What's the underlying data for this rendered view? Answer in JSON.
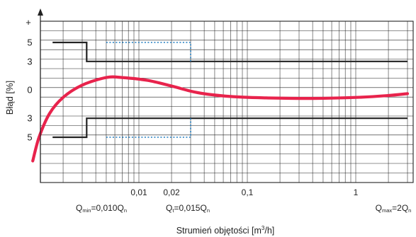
{
  "chart_data": {
    "type": "line",
    "x_scale": "log",
    "ylabel": "Błąd [%]",
    "xlabel_main": "Strumień objętości [m",
    "xlabel_sup": "3",
    "xlabel_end": "/h]",
    "y_plus_marker": "+",
    "y_tick_labels": [
      {
        "value": 5,
        "label": "5"
      },
      {
        "value": 3,
        "label": "3"
      },
      {
        "value": 0,
        "label": "0"
      },
      {
        "value": -3,
        "label": "3"
      },
      {
        "value": -5,
        "label": "5"
      }
    ],
    "x_tick_labels": [
      {
        "value": 0.01,
        "label": "0,01"
      },
      {
        "value": 0.02,
        "label": "0,02"
      },
      {
        "value": 0.1,
        "label": "0,1"
      },
      {
        "value": 1,
        "label": "1"
      }
    ],
    "flow_points": [
      {
        "name": "qmin",
        "q": "Q",
        "sub": "min",
        "rest": "=0,010Q",
        "rest_sub": "n"
      },
      {
        "name": "qt",
        "q": "Q",
        "sub": "t",
        "rest": "=0,015Q",
        "rest_sub": "n"
      },
      {
        "name": "qmax",
        "q": "Q",
        "sub": "max",
        "rest": "=2Q",
        "rest_sub": "n"
      }
    ],
    "error_limits": {
      "color": "#222222",
      "upper": [
        [
          0.0016,
          5
        ],
        [
          0.0033,
          5
        ],
        [
          0.0033,
          3
        ],
        [
          3.0,
          3
        ]
      ],
      "lower": [
        [
          0.0016,
          -5
        ],
        [
          0.0033,
          -5
        ],
        [
          0.0033,
          -3
        ],
        [
          3.0,
          -3
        ]
      ]
    },
    "dotted_limits": {
      "color": "#1e7bc0",
      "upper": [
        [
          0.005,
          5
        ],
        [
          0.03,
          5
        ],
        [
          0.03,
          3
        ]
      ],
      "lower": [
        [
          0.005,
          -5
        ],
        [
          0.03,
          -5
        ],
        [
          0.03,
          -3
        ]
      ]
    },
    "series": [
      {
        "color": "#e8234c",
        "points": [
          [
            0.00105,
            -7.5
          ],
          [
            0.0012,
            -5.0
          ],
          [
            0.0015,
            -2.5
          ],
          [
            0.002,
            -0.8
          ],
          [
            0.003,
            0.5
          ],
          [
            0.005,
            1.3
          ],
          [
            0.007,
            1.3
          ],
          [
            0.012,
            1.0
          ],
          [
            0.02,
            0.4
          ],
          [
            0.035,
            -0.3
          ],
          [
            0.07,
            -0.7
          ],
          [
            0.15,
            -0.85
          ],
          [
            0.4,
            -0.9
          ],
          [
            1.0,
            -0.8
          ],
          [
            2.0,
            -0.6
          ],
          [
            3.0,
            -0.4
          ]
        ]
      }
    ]
  }
}
